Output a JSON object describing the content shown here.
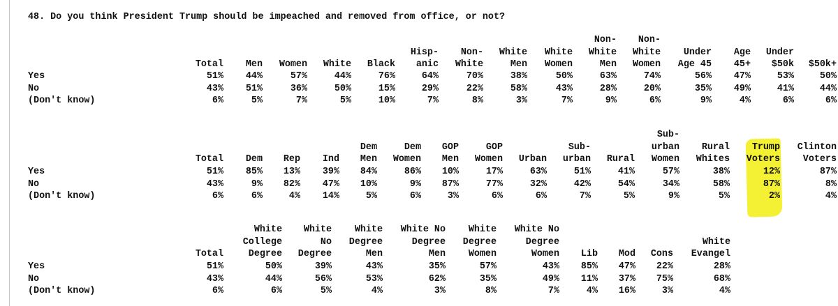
{
  "question": "48. Do you think President Trump should be impeached and removed from office, or not?",
  "row_labels": [
    "Yes",
    "No",
    "(Don't know)"
  ],
  "tables": [
    {
      "columns": [
        {
          "header": "Total",
          "values": [
            "51%",
            "43%",
            "6%"
          ]
        },
        {
          "header": "Men",
          "values": [
            "44%",
            "51%",
            "5%"
          ]
        },
        {
          "header": "Women",
          "values": [
            "57%",
            "36%",
            "7%"
          ]
        },
        {
          "header": "White",
          "values": [
            "44%",
            "50%",
            "5%"
          ]
        },
        {
          "header": "Black",
          "values": [
            "76%",
            "15%",
            "10%"
          ]
        },
        {
          "header": "Hisp-\nanic",
          "values": [
            "64%",
            "29%",
            "7%"
          ]
        },
        {
          "header": "Non-\nWhite",
          "values": [
            "70%",
            "22%",
            "8%"
          ]
        },
        {
          "header": "White\nMen",
          "values": [
            "38%",
            "58%",
            "3%"
          ]
        },
        {
          "header": "White\nWomen",
          "values": [
            "50%",
            "43%",
            "7%"
          ]
        },
        {
          "header": "Non-\nWhite\nMen",
          "values": [
            "63%",
            "28%",
            "9%"
          ]
        },
        {
          "header": "Non-\nWhite\nWomen",
          "values": [
            "74%",
            "20%",
            "6%"
          ]
        },
        {
          "header": "Under\nAge 45",
          "values": [
            "56%",
            "35%",
            "9%"
          ]
        },
        {
          "header": "Age\n45+",
          "values": [
            "47%",
            "49%",
            "4%"
          ]
        },
        {
          "header": "Under\n$50k",
          "values": [
            "53%",
            "41%",
            "6%"
          ]
        },
        {
          "header": "$50k+",
          "values": [
            "50%",
            "44%",
            "6%"
          ]
        }
      ]
    },
    {
      "columns": [
        {
          "header": "Total",
          "values": [
            "51%",
            "43%",
            "6%"
          ]
        },
        {
          "header": "Dem",
          "values": [
            "85%",
            "9%",
            "6%"
          ]
        },
        {
          "header": "Rep",
          "values": [
            "13%",
            "82%",
            "4%"
          ]
        },
        {
          "header": "Ind",
          "values": [
            "39%",
            "47%",
            "14%"
          ]
        },
        {
          "header": "Dem\nMen",
          "values": [
            "84%",
            "10%",
            "5%"
          ]
        },
        {
          "header": "Dem\nWomen",
          "values": [
            "86%",
            "9%",
            "6%"
          ]
        },
        {
          "header": "GOP\nMen",
          "values": [
            "10%",
            "87%",
            "3%"
          ]
        },
        {
          "header": "GOP\nWomen",
          "values": [
            "17%",
            "77%",
            "6%"
          ]
        },
        {
          "header": "Urban",
          "values": [
            "63%",
            "32%",
            "6%"
          ]
        },
        {
          "header": "Sub-\nurban",
          "values": [
            "51%",
            "42%",
            "7%"
          ]
        },
        {
          "header": "Rural",
          "values": [
            "41%",
            "54%",
            "5%"
          ]
        },
        {
          "header": "Sub-\nurban\nWomen",
          "values": [
            "57%",
            "34%",
            "9%"
          ]
        },
        {
          "header": "Rural\nWhites",
          "values": [
            "38%",
            "58%",
            "5%"
          ]
        },
        {
          "header": "Trump\nVoters",
          "values": [
            "12%",
            "87%",
            "2%"
          ]
        },
        {
          "header": "Clinton\nVoters",
          "values": [
            "87%",
            "8%",
            "4%"
          ]
        }
      ]
    },
    {
      "columns": [
        {
          "header": "Total",
          "values": [
            "51%",
            "43%",
            "6%"
          ]
        },
        {
          "header": "White\nCollege\nDegree",
          "values": [
            "50%",
            "44%",
            "6%"
          ]
        },
        {
          "header": "White\nNo\nDegree",
          "values": [
            "39%",
            "56%",
            "5%"
          ]
        },
        {
          "header": "White\nDegree\nMen",
          "values": [
            "43%",
            "53%",
            "4%"
          ]
        },
        {
          "header": "White No\nDegree\nMen",
          "values": [
            "35%",
            "62%",
            "3%"
          ]
        },
        {
          "header": "White\nDegree\nWomen",
          "values": [
            "57%",
            "35%",
            "8%"
          ]
        },
        {
          "header": "White No\nDegree\nWomen",
          "values": [
            "43%",
            "49%",
            "7%"
          ]
        },
        {
          "header": "Lib",
          "values": [
            "85%",
            "11%",
            "4%"
          ]
        },
        {
          "header": "Mod",
          "values": [
            "47%",
            "37%",
            "16%"
          ]
        },
        {
          "header": "Cons",
          "values": [
            "22%",
            "75%",
            "3%"
          ]
        },
        {
          "header": "White\nEvangel",
          "values": [
            "28%",
            "68%",
            "4%"
          ]
        }
      ]
    }
  ],
  "colors": {
    "highlight": "#f3f02a",
    "text": "#111111"
  }
}
